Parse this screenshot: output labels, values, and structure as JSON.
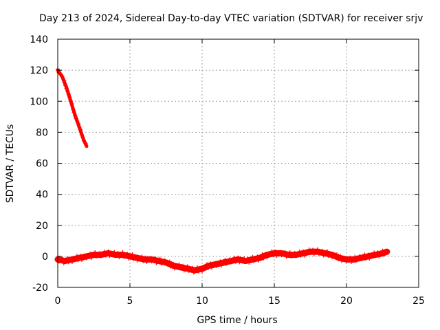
{
  "chart_data": {
    "type": "scatter",
    "title": "Day 213 of 2024, Sidereal Day-to-day VTEC variation (SDTVAR) for receiver srjv",
    "xlabel": "GPS time / hours",
    "ylabel": "SDTVAR / TECUs",
    "xlim": [
      0,
      25
    ],
    "ylim": [
      -20,
      140
    ],
    "x_ticks": [
      "0",
      "5",
      "10",
      "15",
      "20",
      "25"
    ],
    "y_ticks": [
      "-20",
      "0",
      "20",
      "40",
      "60",
      "80",
      "100",
      "120",
      "140"
    ],
    "grid": true,
    "series": [
      {
        "name": "SDTVAR",
        "color": "#ff0000",
        "segments": [
          {
            "x": [
              0.0,
              0.3,
              0.6,
              0.9,
              1.2,
              1.5,
              1.8,
              2.0
            ],
            "y": [
              120,
              116,
              109,
              100,
              91,
              83,
              75,
              71
            ]
          },
          {
            "x": [
              0.0,
              0.5,
              1.0,
              1.5,
              2.0,
              2.5,
              3.0,
              3.5,
              4.0,
              4.5,
              5.0,
              5.5,
              6.0,
              6.5,
              7.0,
              7.5,
              8.0,
              8.5,
              9.0,
              9.5,
              10.0,
              10.5,
              11.0,
              11.5,
              12.0,
              12.5,
              13.0,
              13.5,
              14.0,
              14.5,
              15.0,
              15.5,
              16.0,
              16.5,
              17.0,
              17.5,
              18.0,
              18.5,
              19.0,
              19.5,
              20.0,
              20.5,
              21.0,
              21.5,
              22.0,
              22.5,
              22.8
            ],
            "y": [
              -2,
              -3,
              -2,
              -1,
              0,
              1,
              1,
              2,
              1,
              1,
              0,
              -1,
              -2,
              -2,
              -3,
              -4,
              -6,
              -7,
              -8,
              -9,
              -8,
              -6,
              -5,
              -4,
              -3,
              -2,
              -3,
              -2,
              -1,
              1,
              2,
              2,
              1,
              1,
              2,
              3,
              3,
              2,
              1,
              -1,
              -2,
              -2,
              -1,
              0,
              1,
              2,
              3
            ]
          }
        ]
      }
    ]
  }
}
